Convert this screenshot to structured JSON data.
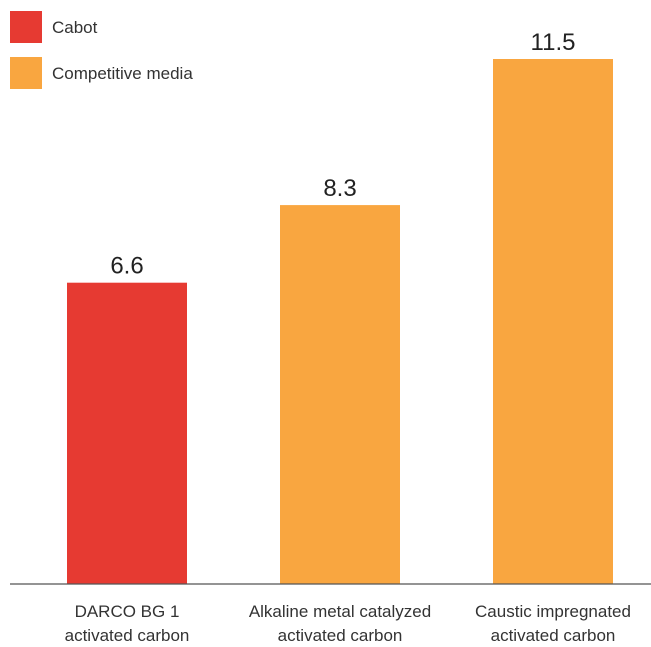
{
  "chart_data": {
    "type": "bar",
    "categories": [
      [
        "DARCO BG 1",
        "activated carbon"
      ],
      [
        "Alkaline metal catalyzed",
        "activated carbon"
      ],
      [
        "Caustic impregnated",
        "activated carbon"
      ]
    ],
    "values": [
      6.6,
      8.3,
      11.5
    ],
    "value_labels": [
      "6.6",
      "8.3",
      "11.5"
    ],
    "bar_series": [
      "Cabot",
      "Competitive media",
      "Competitive media"
    ],
    "legend": {
      "placement": "top-left",
      "entries": [
        {
          "name": "Cabot",
          "color": "#e63a32"
        },
        {
          "name": "Competitive media",
          "color": "#f9a640"
        }
      ]
    },
    "ylim": [
      0,
      11.5
    ],
    "grid": false
  }
}
